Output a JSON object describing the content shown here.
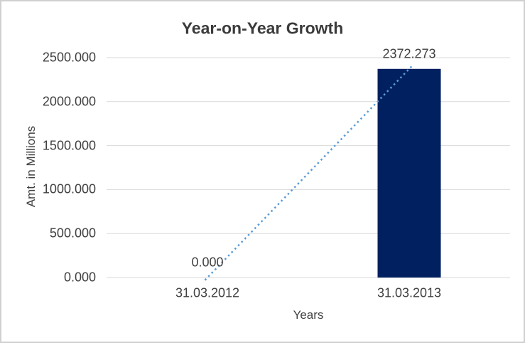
{
  "chart_data": {
    "type": "bar",
    "title": "Year-on-Year Growth",
    "xlabel": "Years",
    "ylabel": "Amt. in Millions",
    "categories": [
      "31.03.2012",
      "31.03.2013"
    ],
    "series": [
      {
        "name": "Amt. in Millions",
        "type": "bar",
        "values": [
          0,
          2372.273
        ],
        "color": "#002060"
      },
      {
        "name": "trendline",
        "type": "dotted-line",
        "values": [
          0,
          2372.273
        ],
        "color": "#5b9bd5"
      }
    ],
    "data_labels": [
      "0.000",
      "2372.273"
    ],
    "ylim": [
      0,
      2500
    ],
    "ytick_step": 500,
    "ytick_labels": [
      "0.000",
      "500.000",
      "1000.000",
      "1500.000",
      "2000.000",
      "2500.000"
    ],
    "grid": true,
    "legend_position": "none",
    "colors": {
      "grid": "#d9d9d9",
      "text": "#404040",
      "title": "#3b3b3b",
      "frame_border": "#d0d0d0",
      "background": "#ffffff"
    }
  }
}
